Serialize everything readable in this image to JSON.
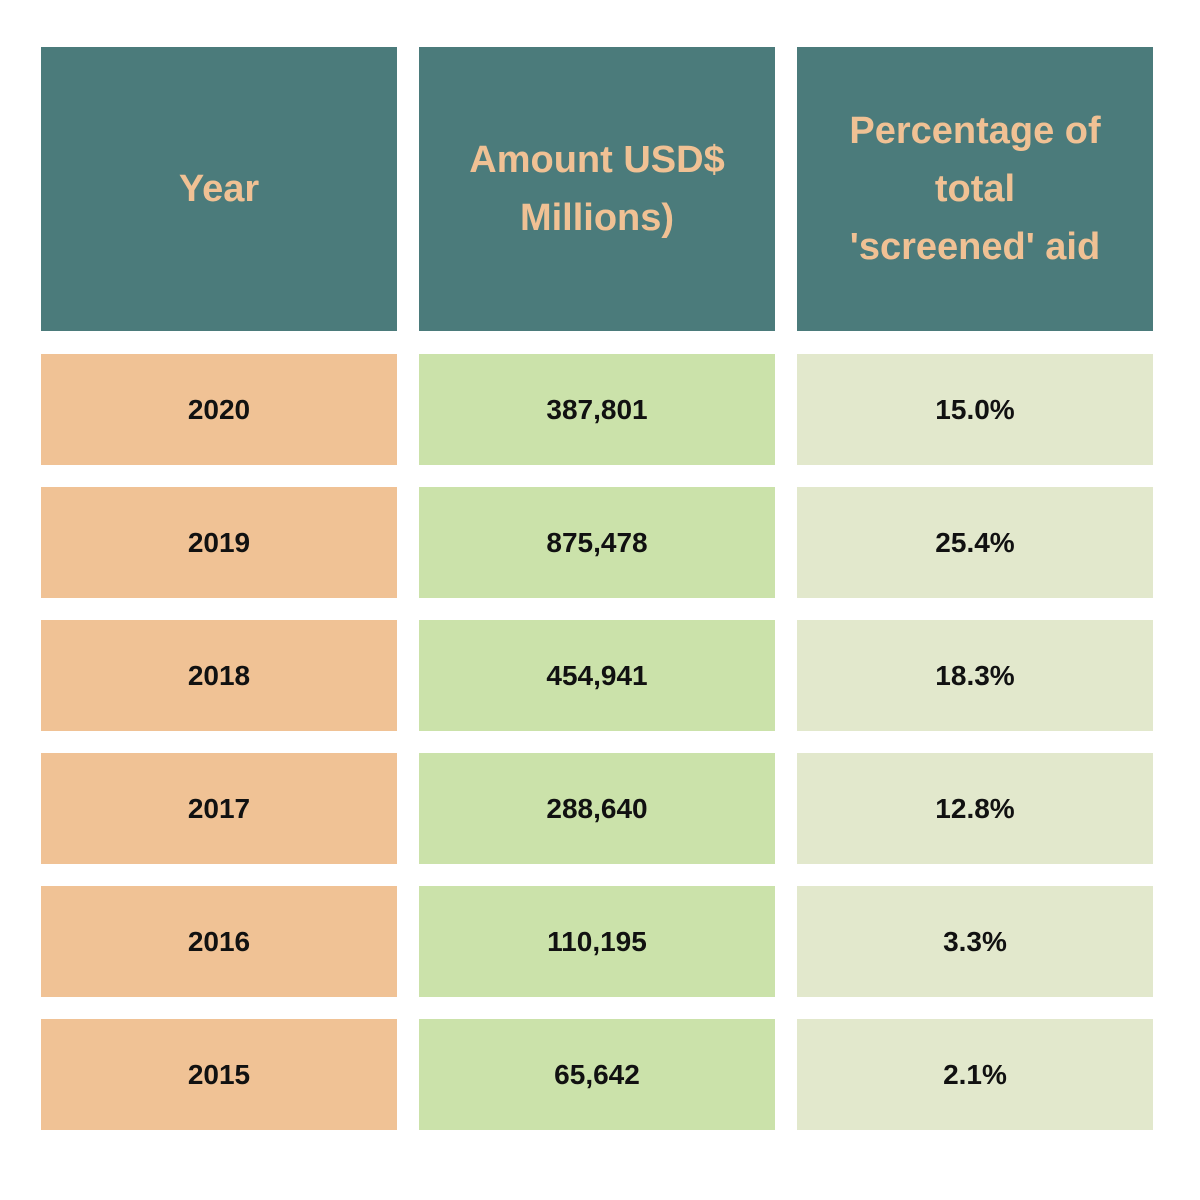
{
  "chart_data": {
    "type": "table",
    "columns": [
      "Year",
      "Amount USD$ Millions)",
      "Percentage of total 'screened' aid"
    ],
    "header_lines": [
      [
        "Year"
      ],
      [
        "Amount USD$",
        "Millions)"
      ],
      [
        "Percentage of",
        "total",
        "'screened' aid"
      ]
    ],
    "rows": [
      {
        "year": "2020",
        "amount": "387,801",
        "percentage": "15.0%"
      },
      {
        "year": "2019",
        "amount": "875,478",
        "percentage": "25.4%"
      },
      {
        "year": "2018",
        "amount": "454,941",
        "percentage": "18.3%"
      },
      {
        "year": "2017",
        "amount": "288,640",
        "percentage": "12.8%"
      },
      {
        "year": "2016",
        "amount": "110,195",
        "percentage": "3.3%"
      },
      {
        "year": "2015",
        "amount": "65,642",
        "percentage": "2.1%"
      }
    ]
  },
  "colors": {
    "header_bg": "#4b7b7b",
    "header_text": "#f0c194",
    "year_bg": "#f0c295",
    "amount_bg": "#cbe2aa",
    "percentage_bg": "#e2e8cc",
    "cell_text": "#111111"
  }
}
